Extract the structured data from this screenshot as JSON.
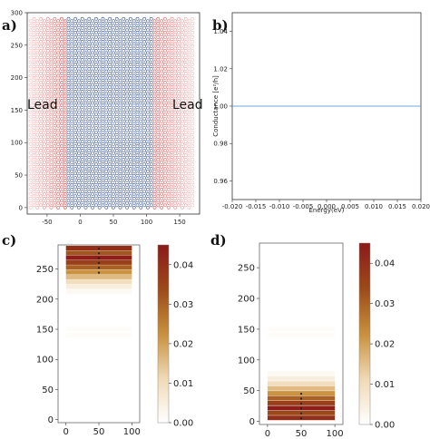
{
  "panels": {
    "a": {
      "label": "a)",
      "lead_left": "Lead",
      "lead_right": "Lead",
      "xticks": [
        "-50",
        "0",
        "50",
        "100",
        "150"
      ],
      "yticks": [
        "0",
        "50",
        "100",
        "150",
        "200",
        "250",
        "300"
      ]
    },
    "b": {
      "label": "b)",
      "xlabel": "Energy(eV)",
      "ylabel": "Conductance [e²/h]",
      "xticks": [
        "-0.020",
        "-0.015",
        "-0.010",
        "-0.005",
        "0.000",
        "0.005",
        "0.010",
        "0.015",
        "0.020"
      ],
      "yticks": [
        "0.96",
        "0.98",
        "1.00",
        "1.02",
        "1.04"
      ]
    },
    "c": {
      "label": "c)",
      "xticks": [
        "0",
        "50",
        "100"
      ],
      "yticks": [
        "0",
        "50",
        "100",
        "150",
        "200",
        "250"
      ],
      "colorbar_ticks": [
        "0.00",
        "0.01",
        "0.02",
        "0.03",
        "0.04"
      ]
    },
    "d": {
      "label": "d)",
      "xticks": [
        "0",
        "50",
        "100"
      ],
      "yticks": [
        "0",
        "50",
        "100",
        "150",
        "200",
        "250"
      ],
      "colorbar_ticks": [
        "0.00",
        "0.01",
        "0.02",
        "0.03",
        "0.04"
      ]
    }
  },
  "colors": {
    "lead_red": "#d62728",
    "scattering_blue": "#1f3f7f",
    "line_blue": "#6fa8dc",
    "cmap_low": "#ffffff",
    "cmap_high": "#8b1a1a"
  },
  "chart_data": [
    {
      "type": "scatter",
      "panel": "a",
      "xlim": [
        -80,
        180
      ],
      "ylim": [
        -10,
        300
      ],
      "series": [],
      "regions": [
        {
          "x": [
            -75,
            -22
          ],
          "kind": "lead"
        },
        {
          "x": [
            -22,
            110
          ],
          "kind": "scattering"
        },
        {
          "x": [
            110,
            170
          ],
          "kind": "lead"
        }
      ]
    },
    {
      "type": "line",
      "panel": "b",
      "title": "",
      "xlabel": "Energy(eV)",
      "ylabel": "Conductance [e²/h]",
      "xlim": [
        -0.02,
        0.02
      ],
      "ylim": [
        0.95,
        1.05
      ],
      "x": [
        -0.02,
        0.02
      ],
      "series": [
        {
          "values": [
            1.0,
            1.0
          ]
        }
      ]
    },
    {
      "type": "heatmap",
      "panel": "c",
      "xlim": [
        -12,
        112
      ],
      "ylim": [
        -5,
        290
      ],
      "bands_y": [
        284,
        276,
        268,
        260,
        252,
        244,
        236,
        228,
        220,
        212,
        150,
        140
      ],
      "band_intensity": [
        0.04,
        0.032,
        0.044,
        0.036,
        0.03,
        0.022,
        0.016,
        0.01,
        0.005,
        0.002,
        0.001,
        0.001
      ],
      "colorbar_range": [
        0.0,
        0.045
      ]
    },
    {
      "type": "heatmap",
      "panel": "d",
      "xlim": [
        -12,
        112
      ],
      "ylim": [
        -5,
        290
      ],
      "bands_y": [
        5,
        13,
        21,
        29,
        37,
        45,
        53,
        61,
        69,
        77,
        140,
        150
      ],
      "band_intensity": [
        0.04,
        0.034,
        0.044,
        0.036,
        0.03,
        0.022,
        0.016,
        0.01,
        0.005,
        0.002,
        0.001,
        0.001
      ],
      "colorbar_range": [
        0.0,
        0.045
      ]
    }
  ]
}
